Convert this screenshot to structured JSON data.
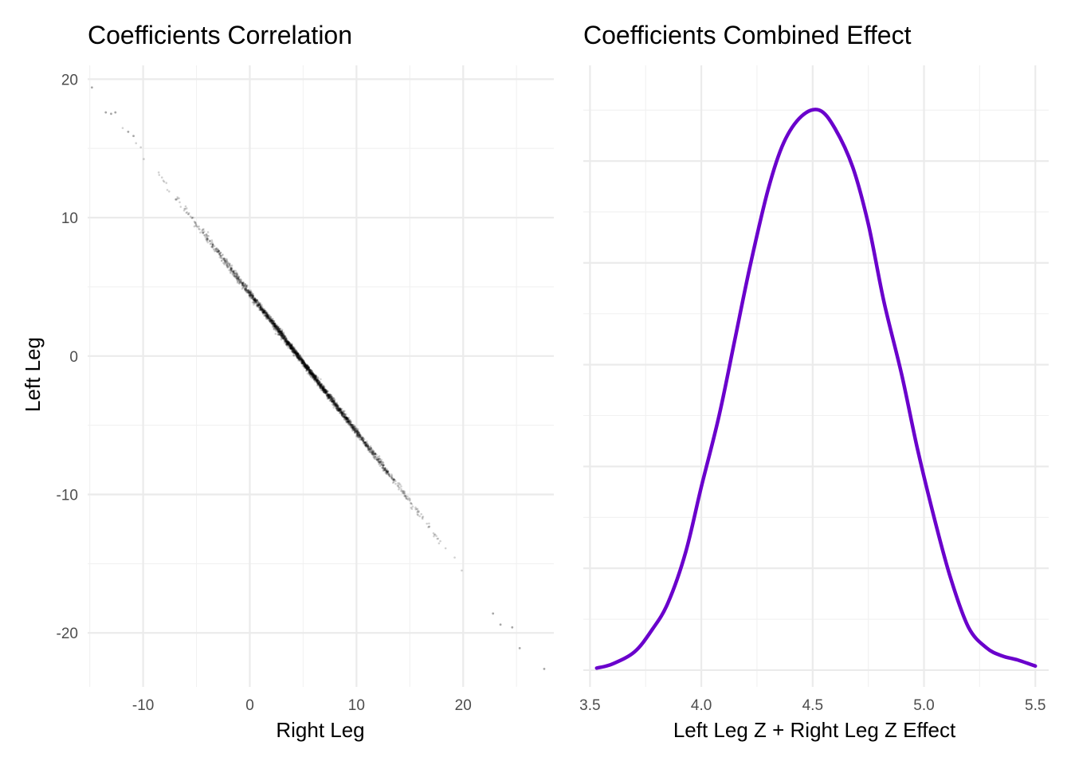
{
  "chart_data": [
    {
      "type": "scatter",
      "title": "Coefficients Correlation",
      "xlabel": "Right Leg",
      "ylabel": "Left Leg",
      "xlim": [
        -15.2,
        28.5
      ],
      "ylim": [
        -23.9,
        21.0
      ],
      "xticks": [
        -10,
        0,
        10,
        20
      ],
      "xtick_labels": [
        "-10",
        "0",
        "10",
        "20"
      ],
      "yticks": [
        -20,
        -10,
        0,
        10,
        20
      ],
      "ytick_labels": [
        "-20",
        "-10",
        "0",
        "10",
        "20"
      ],
      "grid": true,
      "point_color": "#000000",
      "relationship": {
        "intercept": 4.53,
        "slope": -1.0,
        "x_center": 5,
        "x_sd": 4.5,
        "residual_sd": 0.12
      },
      "points": [
        [
          -14.8,
          19.4
        ],
        [
          -13.5,
          17.6
        ],
        [
          -13.0,
          17.5
        ],
        [
          -12.6,
          17.6
        ],
        [
          -11.4,
          16.2
        ],
        [
          -10.9,
          15.9
        ],
        [
          24.6,
          -19.6
        ],
        [
          25.3,
          -21.1
        ],
        [
          27.6,
          -22.6
        ],
        [
          23.5,
          -19.4
        ],
        [
          22.8,
          -18.6
        ]
      ]
    },
    {
      "type": "line",
      "title": "Coefficients Combined Effect",
      "xlabel": "Left Leg Z + Right Leg Z Effect",
      "ylabel": "",
      "xlim": [
        3.47,
        5.56
      ],
      "xticks": [
        3.5,
        4.0,
        4.5,
        5.0,
        5.5
      ],
      "xtick_labels": [
        "3.5",
        "4.0",
        "4.5",
        "5.0",
        "5.5"
      ],
      "grid": true,
      "line_color": "#6a00cc",
      "x": [
        3.53,
        3.6,
        3.7,
        3.78,
        3.85,
        3.93,
        4.0,
        4.08,
        4.15,
        4.22,
        4.3,
        4.37,
        4.45,
        4.53,
        4.6,
        4.68,
        4.75,
        4.82,
        4.9,
        4.97,
        5.05,
        5.12,
        5.2,
        5.28,
        5.35,
        5.42,
        5.5
      ],
      "y": [
        0.01,
        0.03,
        0.09,
        0.2,
        0.33,
        0.58,
        0.9,
        1.25,
        1.62,
        1.99,
        2.36,
        2.59,
        2.72,
        2.75,
        2.66,
        2.47,
        2.19,
        1.81,
        1.45,
        1.09,
        0.73,
        0.45,
        0.21,
        0.11,
        0.07,
        0.05,
        0.02
      ]
    }
  ]
}
